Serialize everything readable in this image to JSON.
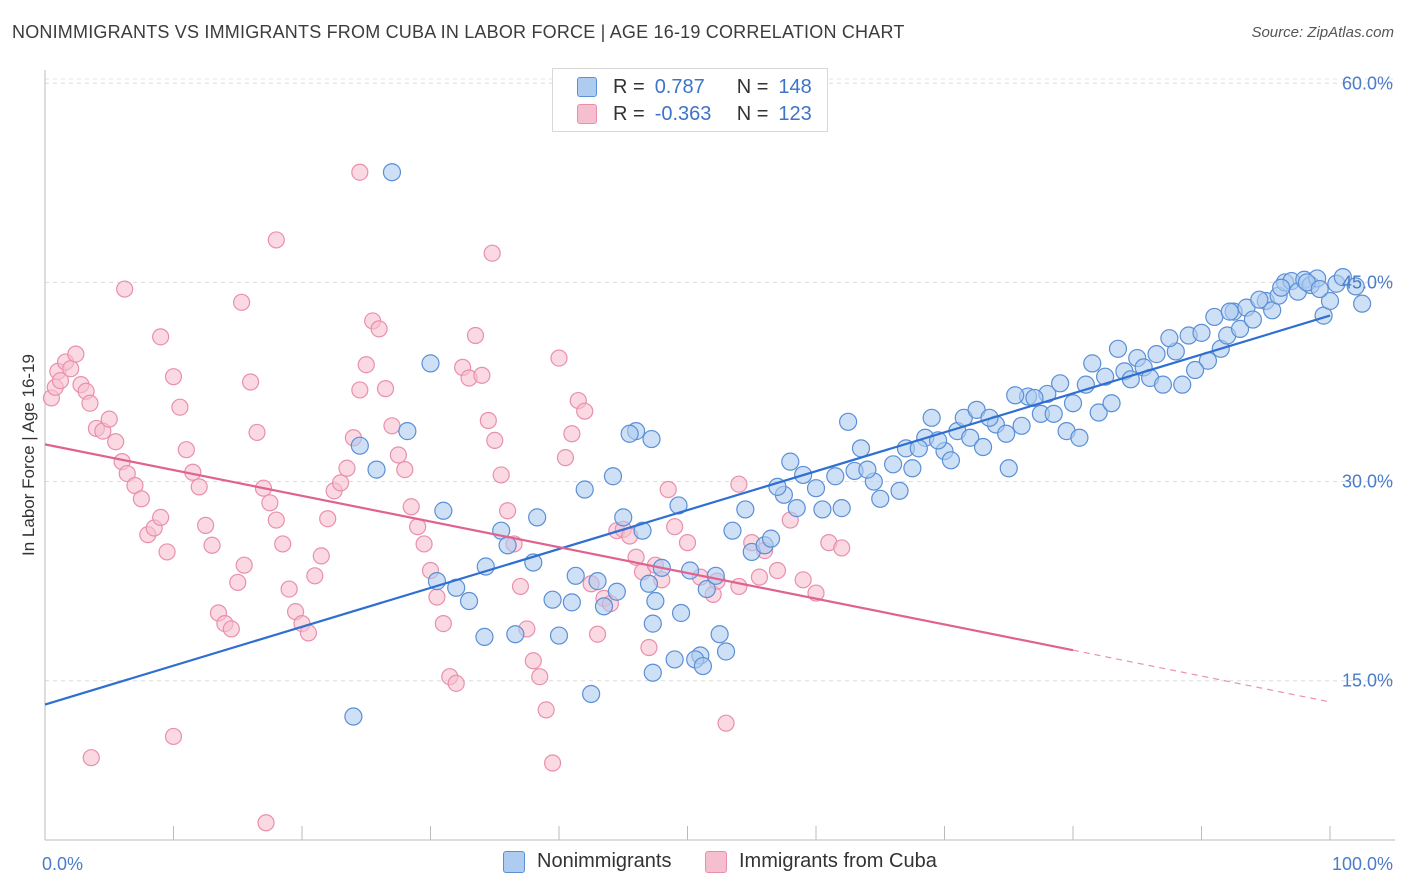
{
  "title": "NONIMMIGRANTS VS IMMIGRANTS FROM CUBA IN LABOR FORCE | AGE 16-19 CORRELATION CHART",
  "source": "Source: ZipAtlas.com",
  "legend": {
    "row1": {
      "r_label": "R =",
      "r_value": "0.787",
      "n_label": "N =",
      "n_value": "148"
    },
    "row2": {
      "r_label": "R =",
      "r_value": "-0.363",
      "n_label": "N =",
      "n_value": "123"
    }
  },
  "colors": {
    "blue_fill": "#aecbf0",
    "blue_stroke": "#5b8fd6",
    "blue_line": "#2f6fd0",
    "pink_fill": "#f6bfd0",
    "pink_stroke": "#e98fae",
    "pink_line": "#e0628f"
  },
  "chart_data": {
    "type": "scatter",
    "xlabel": "",
    "ylabel": "In Labor Force | Age 16-19",
    "xlim": [
      0,
      100
    ],
    "ylim": [
      3,
      61
    ],
    "x_tick_labels": [
      "0.0%",
      "100.0%"
    ],
    "y_ticks": [
      15,
      30,
      45,
      60
    ],
    "y_tick_labels": [
      "15.0%",
      "30.0%",
      "45.0%",
      "60.0%"
    ],
    "grid": true,
    "legend_placement": "bottom",
    "series": [
      {
        "name": "Nonimmigrants",
        "color": "#aecbf0",
        "trend": {
          "x0": 0,
          "y0": 13.2,
          "x1": 100,
          "y1": 42.5
        },
        "points": [
          [
            24,
            12.3
          ],
          [
            30,
            38.9
          ],
          [
            24.5,
            32.7
          ],
          [
            35.5,
            26.3
          ],
          [
            36,
            25.2
          ],
          [
            33,
            21
          ],
          [
            30.5,
            22.5
          ],
          [
            38,
            23.9
          ],
          [
            28.2,
            33.8
          ],
          [
            25.8,
            30.9
          ],
          [
            34.3,
            23.6
          ],
          [
            32,
            22
          ],
          [
            38.3,
            27.3
          ],
          [
            36.6,
            18.5
          ],
          [
            34.2,
            18.3
          ],
          [
            40,
            18.4
          ],
          [
            41.3,
            22.9
          ],
          [
            42,
            29.4
          ],
          [
            43,
            22.5
          ],
          [
            45,
            27.3
          ],
          [
            46.5,
            26.3
          ],
          [
            47.5,
            21
          ],
          [
            48,
            23.5
          ],
          [
            46,
            33.8
          ],
          [
            47.2,
            33.2
          ],
          [
            42.5,
            14
          ],
          [
            47.3,
            15.6
          ],
          [
            47.3,
            19.3
          ],
          [
            49,
            16.6
          ],
          [
            51,
            16.9
          ],
          [
            50.6,
            16.6
          ],
          [
            51.2,
            16.1
          ],
          [
            52.5,
            18.5
          ],
          [
            51.5,
            21.9
          ],
          [
            52.2,
            22.9
          ],
          [
            53,
            17.2
          ],
          [
            50.2,
            23.3
          ],
          [
            49.3,
            28.2
          ],
          [
            45.5,
            33.6
          ],
          [
            44.2,
            30.4
          ],
          [
            53.5,
            26.3
          ],
          [
            54.5,
            27.9
          ],
          [
            55,
            24.7
          ],
          [
            56,
            25.2
          ],
          [
            57.5,
            29
          ],
          [
            57,
            29.6
          ],
          [
            58,
            31.5
          ],
          [
            58.5,
            28
          ],
          [
            59,
            30.5
          ],
          [
            60.5,
            27.9
          ],
          [
            61.5,
            30.4
          ],
          [
            62,
            28
          ],
          [
            63,
            30.8
          ],
          [
            63.5,
            32.5
          ],
          [
            64.5,
            30
          ],
          [
            65,
            28.7
          ],
          [
            66,
            31.3
          ],
          [
            67,
            32.5
          ],
          [
            67.5,
            31
          ],
          [
            68.5,
            33.3
          ],
          [
            69,
            34.8
          ],
          [
            70,
            32.3
          ],
          [
            70.5,
            31.6
          ],
          [
            71,
            33.8
          ],
          [
            72,
            33.3
          ],
          [
            73,
            32.6
          ],
          [
            74,
            34.3
          ],
          [
            74.8,
            33.6
          ],
          [
            75,
            31
          ],
          [
            76,
            34.2
          ],
          [
            76.5,
            36.4
          ],
          [
            77.5,
            35.1
          ],
          [
            78,
            36.6
          ],
          [
            78.5,
            35.1
          ],
          [
            79.5,
            33.8
          ],
          [
            80,
            35.9
          ],
          [
            80.5,
            33.3
          ],
          [
            81,
            37.3
          ],
          [
            82,
            35.2
          ],
          [
            83,
            35.9
          ],
          [
            84,
            38.3
          ],
          [
            84.5,
            37.7
          ],
          [
            85,
            39.3
          ],
          [
            85.5,
            38.6
          ],
          [
            86,
            37.8
          ],
          [
            87,
            37.3
          ],
          [
            88,
            39.8
          ],
          [
            88.5,
            37.3
          ],
          [
            89,
            41
          ],
          [
            90,
            41.2
          ],
          [
            90.5,
            39.1
          ],
          [
            91,
            42.4
          ],
          [
            91.5,
            40
          ],
          [
            92,
            41
          ],
          [
            92.5,
            42.8
          ],
          [
            93,
            41.5
          ],
          [
            93.5,
            43.1
          ],
          [
            94,
            42.2
          ],
          [
            95,
            43.6
          ],
          [
            95.5,
            42.9
          ],
          [
            96,
            44
          ],
          [
            96.5,
            45
          ],
          [
            97,
            45.1
          ],
          [
            97.5,
            44.3
          ],
          [
            98,
            45.2
          ],
          [
            98.5,
            44.8
          ],
          [
            99,
            45.3
          ],
          [
            99.5,
            42.5
          ],
          [
            100,
            43.6
          ],
          [
            100.5,
            44.9
          ],
          [
            101,
            45.4
          ],
          [
            102,
            44.7
          ],
          [
            102.5,
            43.4
          ],
          [
            103,
            42.1
          ],
          [
            27,
            53.3
          ],
          [
            31,
            27.8
          ],
          [
            39.5,
            21.1
          ],
          [
            41,
            20.9
          ],
          [
            43.5,
            20.6
          ],
          [
            44.5,
            21.7
          ],
          [
            47,
            22.3
          ],
          [
            49.5,
            20.1
          ],
          [
            56.5,
            25.7
          ],
          [
            60,
            29.5
          ],
          [
            62.5,
            34.5
          ],
          [
            64,
            30.9
          ],
          [
            66.5,
            29.3
          ],
          [
            68,
            32.5
          ],
          [
            69.5,
            33.1
          ],
          [
            71.5,
            34.8
          ],
          [
            72.5,
            35.4
          ],
          [
            73.5,
            34.8
          ],
          [
            75.5,
            36.5
          ],
          [
            77,
            36.3
          ],
          [
            79,
            37.4
          ],
          [
            81.5,
            38.9
          ],
          [
            82.5,
            37.9
          ],
          [
            83.5,
            40
          ],
          [
            86.5,
            39.6
          ],
          [
            87.5,
            40.8
          ],
          [
            89.5,
            38.4
          ],
          [
            92.2,
            42.8
          ],
          [
            94.5,
            43.7
          ],
          [
            96.2,
            44.6
          ],
          [
            98.2,
            45
          ],
          [
            99.2,
            44.5
          ]
        ]
      },
      {
        "name": "Immigrants from Cuba",
        "color": "#f6bfd0",
        "trend": {
          "x0": 0,
          "y0": 32.8,
          "x1": 80,
          "y1": 17.3,
          "dash_to_x": 100,
          "dash_to_y": 13.4
        },
        "points": [
          [
            0.5,
            36.3
          ],
          [
            0.8,
            37.1
          ],
          [
            1,
            38.3
          ],
          [
            1.2,
            37.6
          ],
          [
            1.6,
            39
          ],
          [
            2,
            38.5
          ],
          [
            2.4,
            39.6
          ],
          [
            2.8,
            37.3
          ],
          [
            3.2,
            36.8
          ],
          [
            3.5,
            35.9
          ],
          [
            4,
            34
          ],
          [
            4.5,
            33.8
          ],
          [
            5,
            34.7
          ],
          [
            5.5,
            33
          ],
          [
            6,
            31.5
          ],
          [
            6.4,
            30.6
          ],
          [
            7,
            29.7
          ],
          [
            7.5,
            28.7
          ],
          [
            8,
            26
          ],
          [
            8.5,
            26.5
          ],
          [
            9,
            27.3
          ],
          [
            9.5,
            24.7
          ],
          [
            10,
            37.9
          ],
          [
            10.5,
            35.6
          ],
          [
            11,
            32.4
          ],
          [
            11.5,
            30.7
          ],
          [
            12,
            29.6
          ],
          [
            12.5,
            26.7
          ],
          [
            13,
            25.2
          ],
          [
            13.5,
            20.1
          ],
          [
            14,
            19.3
          ],
          [
            14.5,
            18.9
          ],
          [
            15,
            22.4
          ],
          [
            15.5,
            23.7
          ],
          [
            16,
            37.5
          ],
          [
            16.5,
            33.7
          ],
          [
            17,
            29.5
          ],
          [
            17.5,
            28.4
          ],
          [
            18,
            27.1
          ],
          [
            18.5,
            25.3
          ],
          [
            19,
            21.9
          ],
          [
            19.5,
            20.2
          ],
          [
            20,
            19.3
          ],
          [
            20.5,
            18.6
          ],
          [
            21,
            22.9
          ],
          [
            21.5,
            24.4
          ],
          [
            22,
            27.2
          ],
          [
            22.5,
            29.3
          ],
          [
            23,
            29.9
          ],
          [
            23.5,
            31
          ],
          [
            24,
            33.3
          ],
          [
            24.5,
            36.9
          ],
          [
            25,
            38.8
          ],
          [
            25.5,
            42.1
          ],
          [
            26,
            41.5
          ],
          [
            26.5,
            37
          ],
          [
            27,
            34.2
          ],
          [
            27.5,
            32
          ],
          [
            28,
            30.9
          ],
          [
            28.5,
            28.1
          ],
          [
            29,
            26.6
          ],
          [
            29.5,
            25.3
          ],
          [
            30,
            23.3
          ],
          [
            30.5,
            21.3
          ],
          [
            31,
            19.3
          ],
          [
            31.5,
            15.3
          ],
          [
            32,
            14.8
          ],
          [
            32.5,
            38.6
          ],
          [
            33,
            37.8
          ],
          [
            33.5,
            41
          ],
          [
            34,
            38
          ],
          [
            34.5,
            34.6
          ],
          [
            35,
            33.1
          ],
          [
            35.5,
            30.5
          ],
          [
            36,
            27.8
          ],
          [
            36.5,
            25.3
          ],
          [
            37,
            22.1
          ],
          [
            37.5,
            18.9
          ],
          [
            38,
            16.5
          ],
          [
            38.5,
            15.3
          ],
          [
            39,
            12.8
          ],
          [
            39.5,
            8.8
          ],
          [
            40,
            39.3
          ],
          [
            40.5,
            31.8
          ],
          [
            41,
            33.6
          ],
          [
            41.5,
            36.1
          ],
          [
            42,
            35.3
          ],
          [
            42.5,
            22.3
          ],
          [
            43,
            18.5
          ],
          [
            43.5,
            21.2
          ],
          [
            44,
            20.8
          ],
          [
            44.5,
            26.3
          ],
          [
            45,
            26.4
          ],
          [
            45.5,
            25.9
          ],
          [
            46,
            24.3
          ],
          [
            46.5,
            23.2
          ],
          [
            47,
            17.5
          ],
          [
            47.5,
            23.7
          ],
          [
            48,
            22.6
          ],
          [
            48.5,
            29.4
          ],
          [
            49,
            26.6
          ],
          [
            50,
            25.4
          ],
          [
            51,
            22.8
          ],
          [
            52,
            21.5
          ],
          [
            53,
            11.8
          ],
          [
            54,
            29.8
          ],
          [
            55,
            25.4
          ],
          [
            56,
            24.8
          ],
          [
            57,
            23.3
          ],
          [
            58,
            27.1
          ],
          [
            59,
            22.6
          ],
          [
            60,
            21.6
          ],
          [
            61,
            25.4
          ],
          [
            62,
            25
          ],
          [
            15.3,
            43.5
          ],
          [
            18,
            48.2
          ],
          [
            24.5,
            53.3
          ],
          [
            34.8,
            47.2
          ],
          [
            6.2,
            44.5
          ],
          [
            9,
            40.9
          ],
          [
            3.6,
            9.2
          ],
          [
            17.2,
            4.3
          ],
          [
            10,
            10.8
          ],
          [
            52.3,
            22.5
          ],
          [
            54,
            22.1
          ],
          [
            55.6,
            22.8
          ]
        ]
      }
    ]
  }
}
